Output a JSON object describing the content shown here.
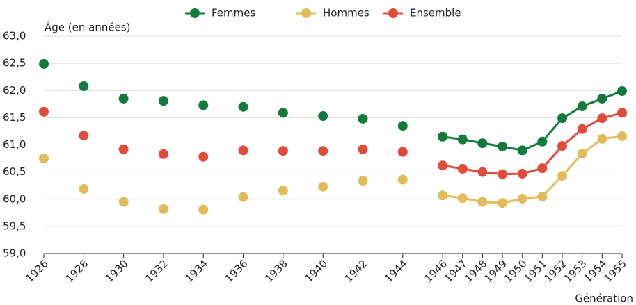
{
  "chart_data": {
    "type": "line",
    "y_axis_label": "Âge (en années)",
    "x_axis_label": "Génération",
    "x": [
      1926,
      1928,
      1930,
      1932,
      1934,
      1936,
      1938,
      1940,
      1942,
      1944,
      1946,
      1947,
      1948,
      1949,
      1950,
      1951,
      1952,
      1953,
      1954,
      1955
    ],
    "line_from": 1946,
    "series": [
      {
        "name": "Femmes",
        "color": "#127a3c",
        "values": [
          62.49,
          62.08,
          61.85,
          61.81,
          61.73,
          61.7,
          61.59,
          61.53,
          61.48,
          61.35,
          61.15,
          61.1,
          61.03,
          60.97,
          60.9,
          61.06,
          61.49,
          61.71,
          61.85,
          61.99
        ]
      },
      {
        "name": "Hommes",
        "color": "#e2bc5a",
        "values": [
          60.75,
          60.19,
          59.95,
          59.82,
          59.81,
          60.04,
          60.16,
          60.23,
          60.34,
          60.36,
          60.07,
          60.02,
          59.95,
          59.93,
          60.01,
          60.05,
          60.43,
          60.84,
          61.11,
          61.16
        ]
      },
      {
        "name": "Ensemble",
        "color": "#e04b3a",
        "values": [
          61.61,
          61.17,
          60.92,
          60.83,
          60.78,
          60.9,
          60.89,
          60.89,
          60.92,
          60.87,
          60.62,
          60.56,
          60.5,
          60.46,
          60.47,
          60.57,
          60.98,
          61.29,
          61.49,
          61.59
        ]
      }
    ],
    "xlim": [
      1926,
      1955
    ],
    "xticks": [
      1926,
      1928,
      1930,
      1932,
      1934,
      1936,
      1938,
      1940,
      1942,
      1944,
      1946,
      1947,
      1948,
      1949,
      1950,
      1951,
      1952,
      1953,
      1954,
      1955
    ],
    "ylim": [
      59,
      63
    ],
    "yticks": [
      {
        "value": 59,
        "label": "59,0"
      },
      {
        "value": 59.5,
        "label": "59,5"
      },
      {
        "value": 60,
        "label": "60,0"
      },
      {
        "value": 60.5,
        "label": "60,5"
      },
      {
        "value": 61,
        "label": "61,0"
      },
      {
        "value": 61.5,
        "label": "61,5"
      },
      {
        "value": 62,
        "label": "62,0"
      },
      {
        "value": 62.5,
        "label": "62,5"
      },
      {
        "value": 63,
        "label": "63,0"
      }
    ],
    "grid": true,
    "legend": "top"
  }
}
